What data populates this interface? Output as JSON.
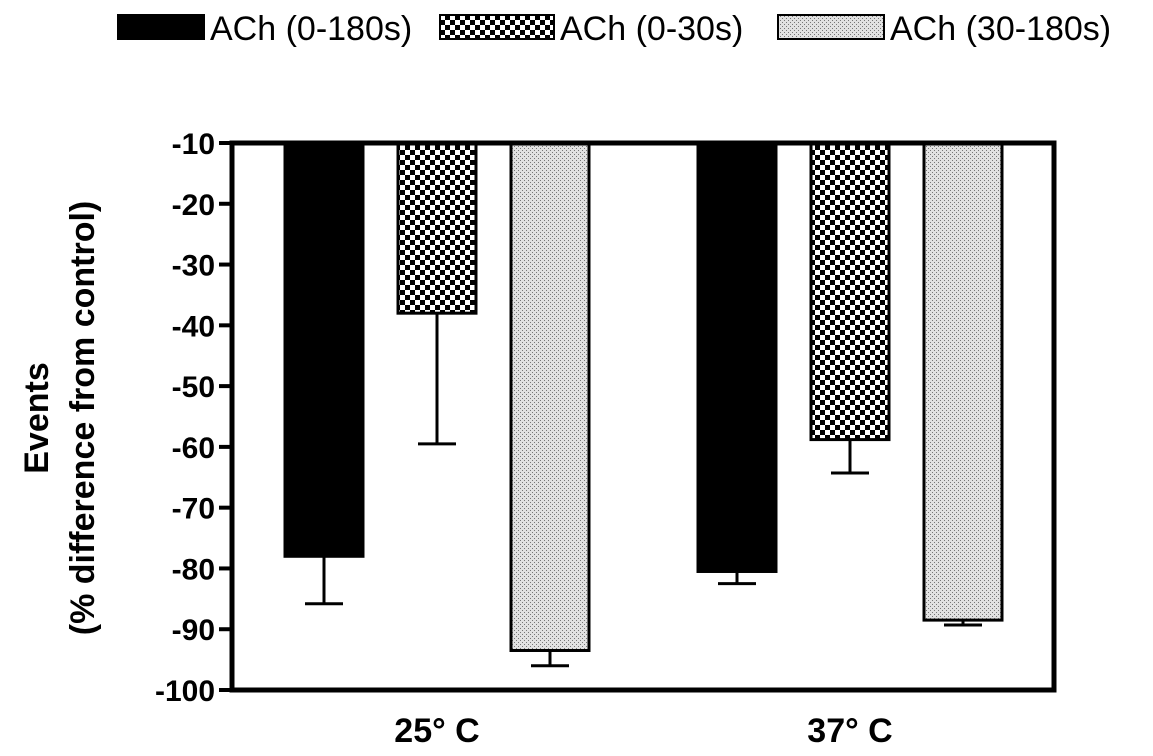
{
  "chart_data": {
    "type": "bar",
    "categories": [
      "25° C",
      "37° C"
    ],
    "ylabel_lines": [
      "Events",
      "(% difference from control)"
    ],
    "ylim": [
      -100,
      -10
    ],
    "yticks": [
      -10,
      -20,
      -30,
      -40,
      -50,
      -60,
      -70,
      -80,
      -90,
      -100
    ],
    "legend_position": "top",
    "series": [
      {
        "name": "ACh (0-180s)",
        "pattern": "solid-black",
        "values": [
          -78,
          -80.5
        ],
        "errors": [
          7.8,
          2
        ]
      },
      {
        "name": "ACh (0-30s)",
        "pattern": "checkerboard",
        "values": [
          -38,
          -58.8
        ],
        "errors": [
          21.5,
          5.5
        ]
      },
      {
        "name": "ACh (30-180s)",
        "pattern": "fine-dots",
        "values": [
          -93.5,
          -88.5
        ],
        "errors": [
          2.5,
          0.8
        ]
      }
    ]
  }
}
